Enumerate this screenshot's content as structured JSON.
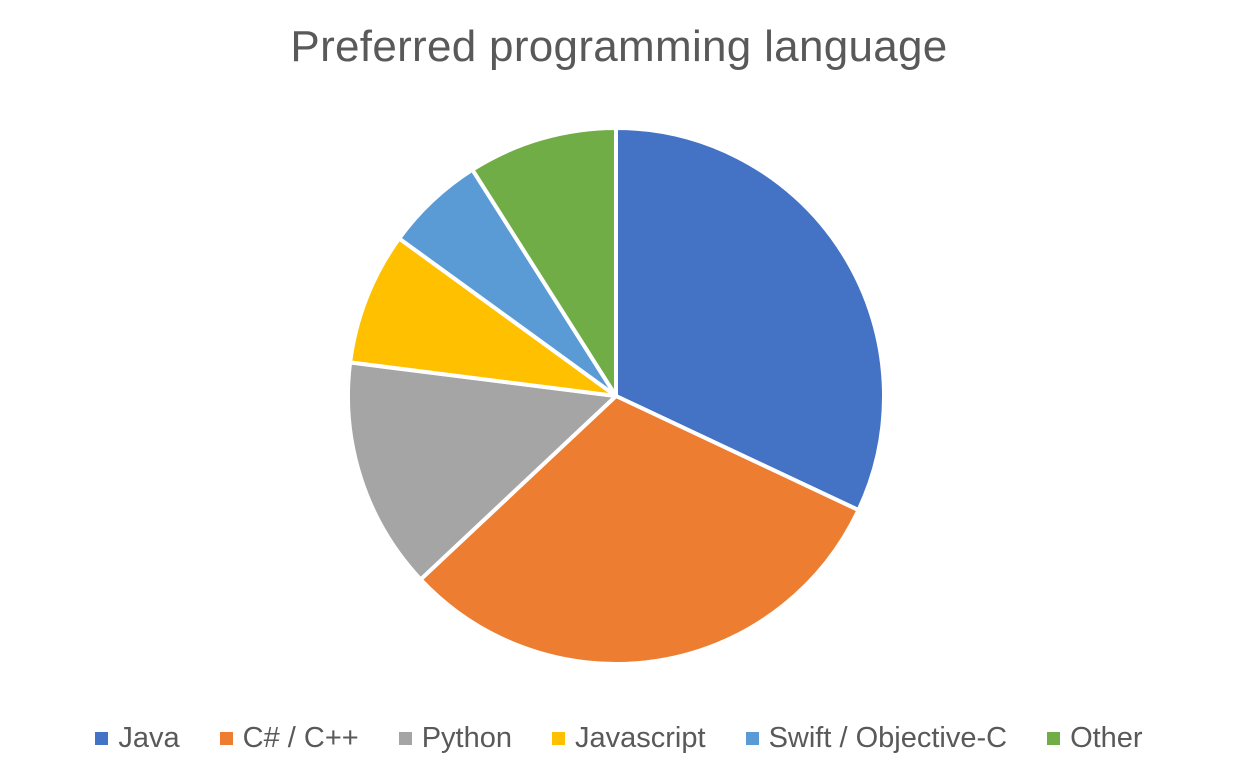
{
  "chart_data": {
    "type": "pie",
    "title": "Preferred programming language",
    "categories": [
      "Java",
      "C# / C++",
      "Python",
      "Javascript",
      "Swift / Objective-C",
      "Other"
    ],
    "values": [
      32,
      31,
      14,
      8,
      6,
      9
    ],
    "colors": [
      "#4472C4",
      "#ED7D31",
      "#A5A5A5",
      "#FFC000",
      "#5B9BD5",
      "#70AD47"
    ],
    "start_angle_deg": 0,
    "direction": "clockwise",
    "legend_position": "bottom"
  }
}
